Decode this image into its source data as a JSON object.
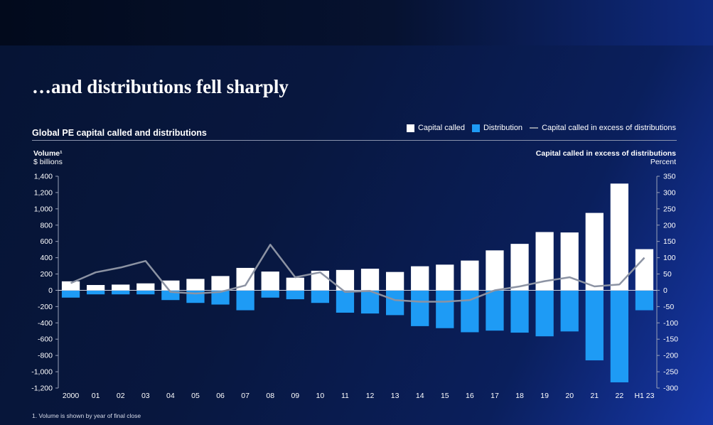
{
  "title": "…and distributions fell sharply",
  "subtitle": "Global PE capital called and distributions",
  "legend": {
    "capital_called": "Capital called",
    "distribution": "Distribution",
    "excess": "Capital called in excess of distributions"
  },
  "axis_left": {
    "title": "Volume¹",
    "unit": "$ billions"
  },
  "axis_right": {
    "title": "Capital called in excess of distributions",
    "unit": "Percent"
  },
  "footnote": "1.     Volume is shown by year of final close",
  "colors": {
    "capital_called": "#ffffff",
    "distribution": "#1e9bf5",
    "excess_line": "#8c93a3",
    "axis": "#9aa2b8"
  },
  "chart_data": {
    "type": "bar",
    "categories": [
      "2000",
      "01",
      "02",
      "03",
      "04",
      "05",
      "06",
      "07",
      "08",
      "09",
      "10",
      "11",
      "12",
      "13",
      "14",
      "15",
      "16",
      "17",
      "18",
      "19",
      "20",
      "21",
      "22",
      "H1 23"
    ],
    "series": [
      {
        "name": "Capital called",
        "type": "bar",
        "values": [
          110,
          65,
          70,
          85,
          120,
          140,
          175,
          275,
          230,
          155,
          240,
          250,
          265,
          225,
          295,
          315,
          365,
          490,
          570,
          715,
          710,
          950,
          1310,
          505
        ]
      },
      {
        "name": "Distribution",
        "type": "bar",
        "values": [
          -90,
          -50,
          -50,
          -50,
          -120,
          -155,
          -175,
          -245,
          -90,
          -110,
          -155,
          -275,
          -285,
          -305,
          -440,
          -465,
          -515,
          -495,
          -520,
          -565,
          -505,
          -860,
          -1130,
          -245
        ]
      },
      {
        "name": "Capital called in excess of distributions",
        "type": "line",
        "axis": "right",
        "values": [
          22,
          55,
          70,
          90,
          -5,
          -10,
          -5,
          15,
          140,
          40,
          55,
          -5,
          -2,
          -30,
          -35,
          -35,
          -30,
          0,
          12,
          28,
          40,
          12,
          18,
          100
        ]
      }
    ],
    "ylim_left": [
      -1200,
      1400
    ],
    "yticks_left": [
      1400,
      1200,
      1000,
      800,
      600,
      400,
      200,
      0,
      -200,
      -400,
      -600,
      -800,
      -1000,
      -1200
    ],
    "ytick_labels_left": [
      "1,400",
      "1,200",
      "1,000",
      "800",
      "600",
      "400",
      "200",
      "0",
      "-200",
      "-400",
      "-600",
      "-800",
      "-1,000",
      "-1,200"
    ],
    "ylim_right": [
      -300,
      350
    ],
    "yticks_right": [
      350,
      300,
      250,
      200,
      150,
      100,
      50,
      0,
      -50,
      -100,
      -150,
      -200,
      -250,
      -300
    ],
    "ytick_labels_right": [
      "350",
      "300",
      "250",
      "200",
      "150",
      "100",
      "50",
      "0",
      "-50",
      "-100",
      "-150",
      "-200",
      "-250",
      "-300"
    ],
    "grid": false,
    "legend_position": "top-right"
  }
}
